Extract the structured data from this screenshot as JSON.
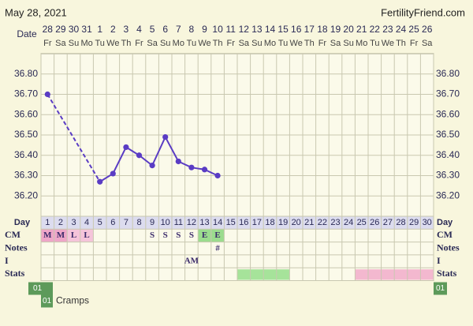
{
  "header": {
    "date": "May 28, 2021",
    "site": "FertilityFriend.com"
  },
  "chart_data": {
    "type": "line",
    "date_label": "Date",
    "categories": [
      "28",
      "29",
      "30",
      "31",
      "1",
      "2",
      "3",
      "4",
      "5",
      "6",
      "7",
      "8",
      "9",
      "10",
      "11",
      "12",
      "13",
      "14",
      "15",
      "16",
      "17",
      "18",
      "19",
      "20",
      "21",
      "22",
      "23",
      "24",
      "25",
      "26"
    ],
    "weekdays": [
      "Fr",
      "Sa",
      "Su",
      "Mo",
      "Tu",
      "We",
      "Th",
      "Fr",
      "Sa",
      "Su",
      "Mo",
      "Tu",
      "We",
      "Th",
      "Fr",
      "Sa",
      "Su",
      "Mo",
      "Tu",
      "We",
      "Th",
      "Fr",
      "Sa",
      "Su",
      "Mo",
      "Tu",
      "We",
      "Th",
      "Fr",
      "Sa"
    ],
    "series": [
      {
        "color": "#5a3cc4",
        "values": [
          36.7,
          null,
          null,
          null,
          36.27,
          36.31,
          36.44,
          36.4,
          36.35,
          36.49,
          36.37,
          36.34,
          36.33,
          36.3,
          null,
          null,
          null,
          null,
          null,
          null,
          null,
          null,
          null,
          null,
          null,
          null,
          null,
          null,
          null,
          null
        ]
      }
    ],
    "ylim": [
      36.1,
      36.9
    ],
    "yticks": [
      {
        "value": 36.2,
        "label": "36.20"
      },
      {
        "value": 36.3,
        "label": "36.30"
      },
      {
        "value": 36.4,
        "label": "36.40"
      },
      {
        "value": 36.5,
        "label": "36.50"
      },
      {
        "value": 36.6,
        "label": "36.60"
      },
      {
        "value": 36.7,
        "label": "36.70"
      },
      {
        "value": 36.8,
        "label": "36.80"
      }
    ],
    "grid": true
  },
  "table": {
    "day_label": "Day",
    "days": [
      1,
      2,
      3,
      4,
      5,
      6,
      7,
      8,
      9,
      10,
      11,
      12,
      13,
      14,
      15,
      16,
      17,
      18,
      19,
      20,
      21,
      22,
      23,
      24,
      25,
      26,
      27,
      28,
      29,
      30
    ],
    "rows": [
      {
        "label": "CM",
        "cells": [
          {
            "text": "M",
            "color": "#eea6c8"
          },
          {
            "text": "M",
            "color": "#eea6c8"
          },
          {
            "text": "L",
            "color": "#f5c4da"
          },
          {
            "text": "L",
            "color": "#f5c4da"
          },
          null,
          null,
          null,
          null,
          {
            "text": "S"
          },
          {
            "text": "S"
          },
          {
            "text": "S"
          },
          {
            "text": "S"
          },
          {
            "text": "E",
            "color": "#9bdc8e"
          },
          {
            "text": "E",
            "color": "#9bdc8e"
          },
          null,
          null,
          null,
          null,
          null,
          null,
          null,
          null,
          null,
          null,
          null,
          null,
          null,
          null,
          null,
          null
        ]
      },
      {
        "label": "Notes",
        "cells": [
          null,
          null,
          null,
          null,
          null,
          null,
          null,
          null,
          null,
          null,
          null,
          null,
          null,
          {
            "text": "#"
          },
          null,
          null,
          null,
          null,
          null,
          null,
          null,
          null,
          null,
          null,
          null,
          null,
          null,
          null,
          null,
          null
        ]
      },
      {
        "label": "I",
        "cells": [
          null,
          null,
          null,
          null,
          null,
          null,
          null,
          null,
          null,
          null,
          null,
          {
            "text": "AM"
          },
          null,
          null,
          null,
          null,
          null,
          null,
          null,
          null,
          null,
          null,
          null,
          null,
          null,
          null,
          null,
          null,
          null,
          null
        ]
      },
      {
        "label": "Stats",
        "bands": [
          {
            "from_day": 16,
            "to_day": 19,
            "color": "#a6e39a"
          },
          {
            "from_day": 25,
            "to_day": 30,
            "color": "#f3b8cf"
          }
        ]
      }
    ],
    "symptom_code": "01",
    "legend": [
      {
        "code": "01",
        "label": "Cramps"
      }
    ]
  }
}
